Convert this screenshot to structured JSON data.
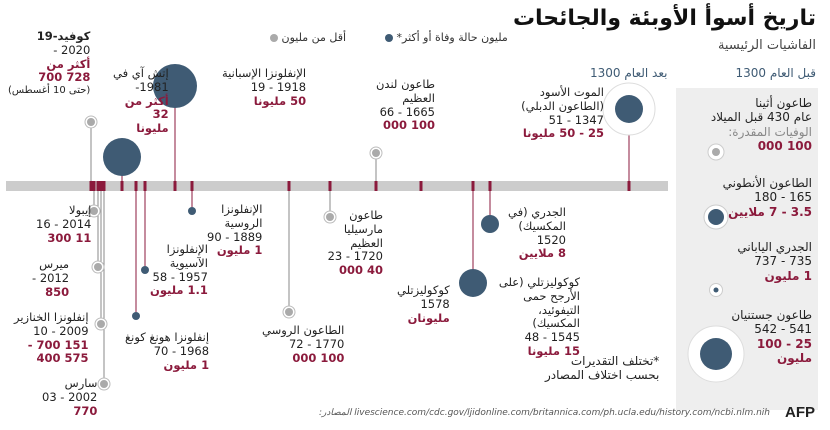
{
  "header": {
    "title": "تاريخ أسوأ الأوبئة والجائحات",
    "subtitle": "الفاشيات الرئيسية"
  },
  "legend": {
    "large_label": "مليون حالة وفاة أو أكثر*",
    "small_label": "أقل من مليون"
  },
  "columns": {
    "before_1300": "قبل العام 1300",
    "after_1300": "بعد العام 1300"
  },
  "footnote": "*تختلف التقديرات\nبحسب اختلاف المصادر",
  "sources": "livescience.com/cdc.gov/ljidonline.com/britannica.com/ph.ucla.edu/history.com/ncbi.nlm.nih المصادر:",
  "logo": "AFP",
  "colors": {
    "large": "#3f5b74",
    "small": "#aaaaaa",
    "deaths": "#8b1a3c",
    "axis": "#cccccc",
    "panel": "#eeeeee",
    "tick": "#8b1a3c"
  },
  "chart_data": {
    "type": "timeline",
    "before_1300": [
      {
        "name": "طاعون أثينا",
        "period": "عام 430 قبل الميلاد",
        "deaths_label_prefix": "الوفيات المقدرة:",
        "deaths": "100 000",
        "category": "small",
        "deaths_min": 100000
      },
      {
        "name": "الطاعون الأنطوني",
        "period": "165 - 180",
        "deaths": "3.5 - 7 ملايين",
        "category": "large",
        "deaths_min": 3500000
      },
      {
        "name": "الجدري الياباني",
        "period": "735 - 737",
        "deaths": "1 مليون",
        "category": "large",
        "deaths_min": 1000000
      },
      {
        "name": "طاعون جستنيان",
        "period": "541 - 542",
        "deaths": "25 - 100 مليون",
        "category": "large",
        "deaths_min": 25000000
      }
    ],
    "after_1300": [
      {
        "name": "الموت الأسود (الطاعون الدبلي)",
        "period": "1347 - 51",
        "deaths": "25 - 50 مليونا",
        "category": "large",
        "start": 1347,
        "deaths_min": 25000000
      },
      {
        "name": "الجدري (في المكسيك)",
        "period": "1520",
        "deaths": "8 ملايين",
        "category": "large",
        "start": 1520,
        "deaths_min": 8000000
      },
      {
        "name": "كوكوليزتلي (على الأرجح حمى التيفوئيد، المكسيك)",
        "period": "1545 - 48",
        "deaths": "15 مليونا",
        "category": "large",
        "start": 1545,
        "deaths_min": 15000000
      },
      {
        "name": "كوكوليزتلي",
        "period": "1578",
        "deaths": "مليونان",
        "category": "large",
        "start": 1578,
        "deaths_min": 2000000
      },
      {
        "name": "طاعون لندن العظيم",
        "period": "1665 - 66",
        "deaths": "100 000",
        "category": "small",
        "start": 1665,
        "deaths_min": 100000
      },
      {
        "name": "طاعون مارسيليا العظيم",
        "period": "1720 - 23",
        "deaths": "40 000",
        "category": "small",
        "start": 1720,
        "deaths_min": 40000
      },
      {
        "name": "الطاعون الروسي",
        "period": "1770 - 72",
        "deaths": "100 000",
        "category": "small",
        "start": 1770,
        "deaths_min": 100000
      },
      {
        "name": "الإنفلونزا الروسية",
        "period": "1889 - 90",
        "deaths": "1 مليون",
        "category": "large",
        "start": 1889,
        "deaths_min": 1000000
      },
      {
        "name": "الإنفلونزا الإسبانية",
        "period": "1918 - 19",
        "deaths": "50 مليونا",
        "category": "large",
        "start": 1918,
        "deaths_min": 50000000
      },
      {
        "name": "الإنفلونزا الآسيوية",
        "period": "1957 - 58",
        "deaths": "1.1 مليون",
        "category": "large",
        "start": 1957,
        "deaths_min": 1100000
      },
      {
        "name": "إنفلونزا هونغ كونغ",
        "period": "1968 - 70",
        "deaths": "1 مليون",
        "category": "large",
        "start": 1968,
        "deaths_min": 1000000
      },
      {
        "name": "إتش آي في",
        "period": "1981-",
        "deaths": "أكثر من 32 مليونا",
        "category": "large",
        "start": 1981,
        "deaths_min": 32000000
      },
      {
        "name": "سارس",
        "period": "2002 - 03",
        "deaths": "770",
        "category": "small",
        "start": 2002,
        "deaths_min": 770
      },
      {
        "name": "إنفلونزا الخنازير",
        "period": "2009 - 10",
        "deaths": "151 700 - 575 400",
        "category": "small",
        "start": 2009,
        "deaths_min": 151700
      },
      {
        "name": "ميرس",
        "period": "2012 -",
        "deaths": "850",
        "category": "small",
        "start": 2012,
        "deaths_min": 850
      },
      {
        "name": "إيبولا",
        "period": "2014 - 16",
        "deaths": "11 300",
        "category": "small",
        "start": 2014,
        "deaths_min": 11300
      },
      {
        "name": "كوفيد-19",
        "period": "2020 -",
        "deaths": "أكثر من 728 700",
        "note": "(حتى 10 أغسطس)",
        "category": "small",
        "start": 2020,
        "deaths_min": 728700
      }
    ]
  }
}
